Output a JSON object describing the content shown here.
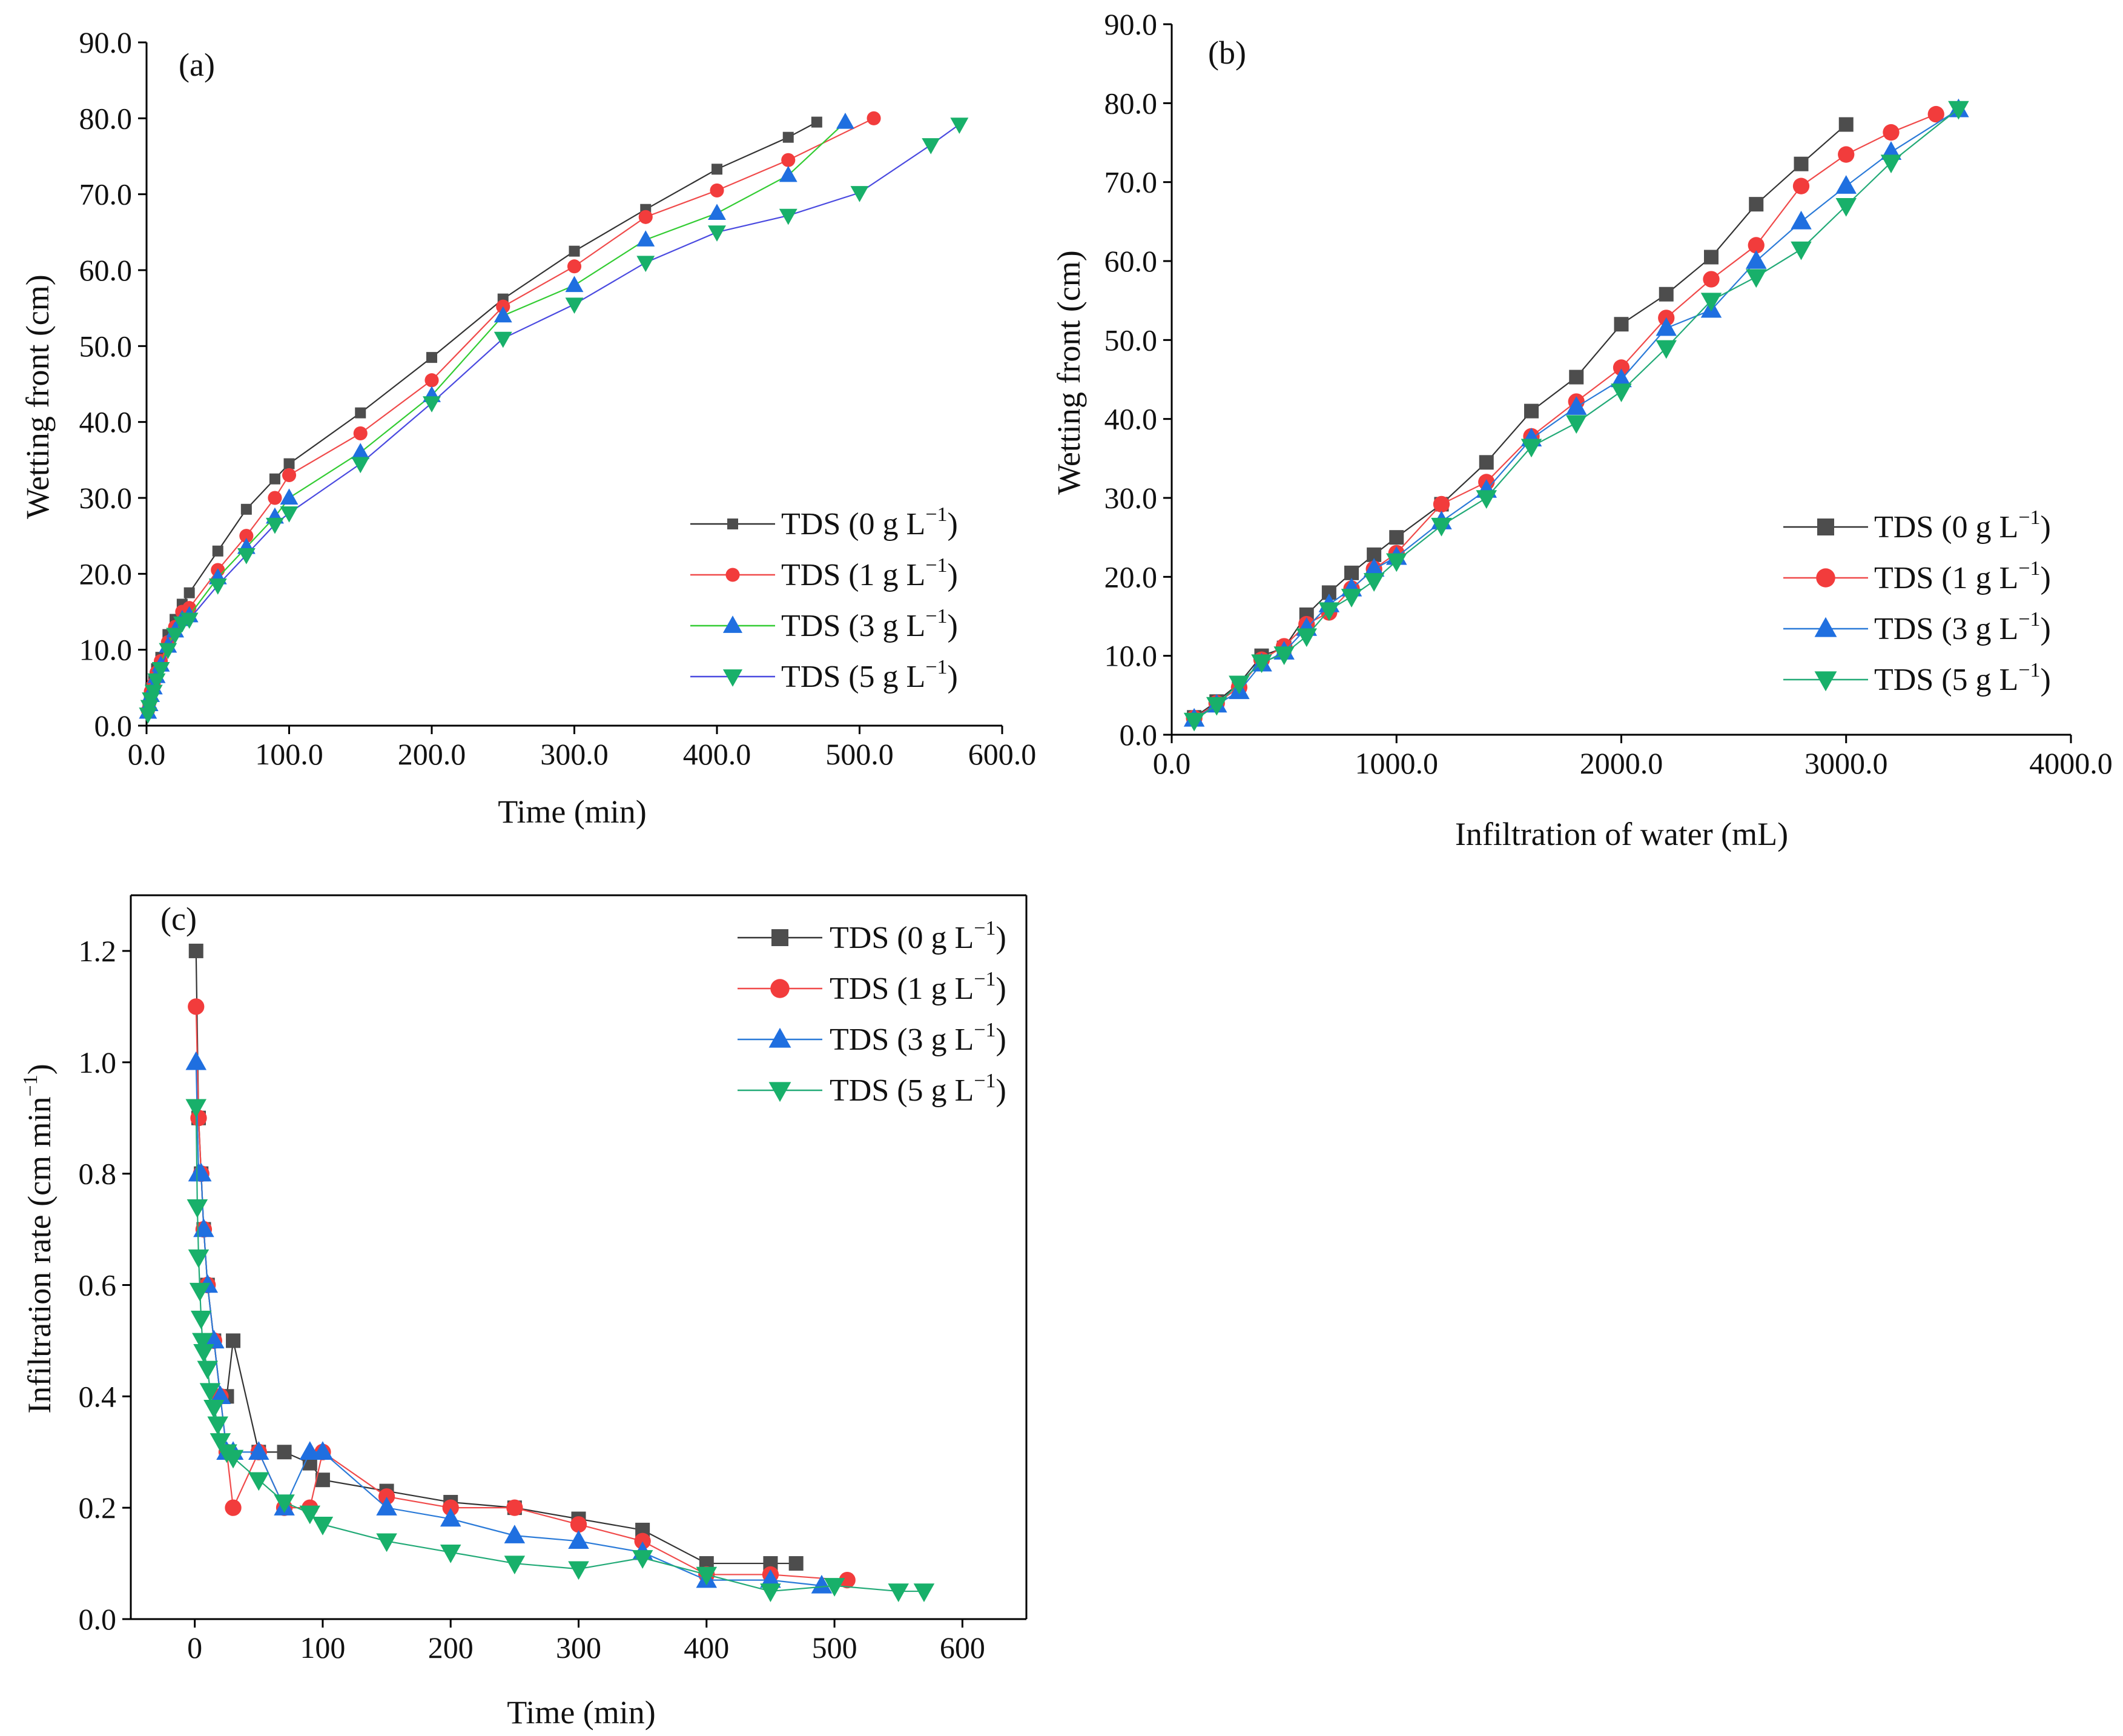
{
  "colors": {
    "tds_0": "#4d4d4d",
    "tds_1": "#f23c3c",
    "tds_3": "#1f6fe0",
    "tds_5": "#18b06a",
    "line_0": "#333333",
    "line_1": "#f04a4a",
    "line_3_a": "#33cc33",
    "line_5_a": "#4a4ae0",
    "line_3_bc": "#2a7ad8",
    "line_5_bc": "#22aa77"
  },
  "chart_data": [
    {
      "id": "a",
      "type": "line",
      "panel_label": "(a)",
      "xlabel": "Time (min)",
      "ylabel": "Wetting front (cm)",
      "xlim": [
        0,
        600
      ],
      "ylim": [
        0,
        90
      ],
      "xticks": [
        "0.0",
        "100.0",
        "200.0",
        "300.0",
        "400.0",
        "500.0",
        "600.0"
      ],
      "yticks": [
        "0.0",
        "10.0",
        "20.0",
        "30.0",
        "40.0",
        "50.0",
        "60.0",
        "70.0",
        "80.0",
        "90.0"
      ],
      "legend_position": "center-right",
      "series": [
        {
          "name": "TDS (0 g L",
          "marker": "square",
          "x": [
            1,
            2,
            3,
            5,
            7,
            10,
            15,
            20,
            25,
            30,
            50,
            70,
            90,
            100,
            150,
            200,
            250,
            300,
            350,
            400,
            450,
            470
          ],
          "y": [
            2.5,
            3.5,
            5,
            6,
            7.5,
            9,
            12,
            14,
            16,
            17.5,
            23,
            28.5,
            32.5,
            34.5,
            41.2,
            48.5,
            56.2,
            62.5,
            68,
            73.3,
            77.5,
            79.5
          ]
        },
        {
          "name": "TDS (1 g L",
          "marker": "circle",
          "x": [
            1,
            2,
            3,
            5,
            7,
            10,
            15,
            20,
            25,
            30,
            50,
            70,
            90,
            100,
            150,
            200,
            250,
            300,
            350,
            400,
            450,
            510
          ],
          "y": [
            2,
            3,
            4.5,
            5.5,
            7,
            8.5,
            11,
            13,
            15,
            15.5,
            20.5,
            25,
            30,
            33,
            38.5,
            45.5,
            55.2,
            60.5,
            67,
            70.5,
            74.5,
            80
          ]
        },
        {
          "name": "TDS (3 g L",
          "marker": "triangle-up",
          "x": [
            1,
            2,
            3,
            5,
            7,
            10,
            15,
            20,
            25,
            30,
            50,
            70,
            90,
            100,
            150,
            200,
            250,
            300,
            350,
            400,
            450,
            490
          ],
          "y": [
            1.8,
            2.8,
            4,
            5,
            6.5,
            8,
            10.5,
            12.5,
            14,
            14.5,
            19.5,
            23.5,
            27.5,
            30,
            36,
            43.5,
            54,
            58,
            64,
            67.5,
            72.5,
            79.5
          ]
        },
        {
          "name": "TDS (5 g L",
          "marker": "triangle-down",
          "x": [
            1,
            2,
            3,
            5,
            7,
            10,
            15,
            20,
            25,
            30,
            50,
            70,
            90,
            100,
            150,
            200,
            250,
            300,
            350,
            400,
            450,
            500,
            550,
            570
          ],
          "y": [
            1.5,
            2.5,
            3.5,
            4.5,
            6,
            7.5,
            10,
            12,
            13.5,
            14,
            18.5,
            22.5,
            26.5,
            28,
            34.5,
            42.5,
            51,
            55.5,
            61,
            65,
            67.2,
            70.2,
            76.5,
            79.2
          ]
        }
      ]
    },
    {
      "id": "b",
      "type": "line",
      "panel_label": "(b)",
      "xlabel": "Infiltration of water (mL)",
      "ylabel": "Wetting front (cm)",
      "xlim": [
        0,
        4000
      ],
      "ylim": [
        0,
        90
      ],
      "xticks": [
        "0.0",
        "1000.0",
        "2000.0",
        "3000.0",
        "4000.0"
      ],
      "yticks": [
        "0.0",
        "10.0",
        "20.0",
        "30.0",
        "40.0",
        "50.0",
        "60.0",
        "70.0",
        "80.0",
        "90.0"
      ],
      "legend_position": "center-right",
      "series": [
        {
          "name": "TDS (0 g L",
          "marker": "square",
          "x": [
            100,
            200,
            300,
            400,
            500,
            600,
            700,
            800,
            900,
            1000,
            1200,
            1400,
            1600,
            1800,
            2000,
            2200,
            2400,
            2600,
            2800,
            3000
          ],
          "y": [
            2.2,
            4.2,
            6.5,
            10,
            11,
            15.2,
            18,
            20.5,
            22.8,
            25,
            29.2,
            34.5,
            41,
            45.3,
            52,
            55.8,
            60.5,
            67.2,
            72.3,
            77.3
          ]
        },
        {
          "name": "TDS (1 g L",
          "marker": "circle",
          "x": [
            100,
            200,
            300,
            400,
            500,
            600,
            700,
            800,
            900,
            1000,
            1200,
            1400,
            1600,
            1800,
            2000,
            2200,
            2400,
            2600,
            2800,
            3000,
            3200,
            3400
          ],
          "y": [
            2.1,
            4,
            6,
            9.5,
            11.2,
            14,
            15.5,
            18.5,
            21,
            23,
            29.2,
            32,
            37.8,
            42.2,
            46.5,
            52.8,
            57.7,
            62,
            69.5,
            73.5,
            76.3,
            78.6
          ]
        },
        {
          "name": "TDS (3 g L",
          "marker": "triangle-up",
          "x": [
            100,
            200,
            300,
            400,
            500,
            600,
            700,
            800,
            900,
            1000,
            1200,
            1400,
            1600,
            1800,
            2000,
            2200,
            2400,
            2600,
            2800,
            3000,
            3200,
            3500
          ],
          "y": [
            2,
            3.8,
            5.5,
            9,
            10.5,
            13.5,
            16.5,
            18.5,
            21,
            22.5,
            27,
            31,
            37.5,
            41.5,
            45,
            51.5,
            53.8,
            60,
            65,
            69.5,
            73.8,
            79.2
          ]
        },
        {
          "name": "TDS (5 g L",
          "marker": "triangle-down",
          "x": [
            100,
            200,
            300,
            400,
            500,
            600,
            700,
            800,
            900,
            1000,
            1200,
            1400,
            1600,
            1800,
            2000,
            2200,
            2400,
            2600,
            2800,
            3000,
            3200,
            3500
          ],
          "y": [
            1.8,
            3.8,
            6.5,
            9.2,
            10.2,
            12.5,
            15.8,
            17.5,
            19.5,
            22,
            26.5,
            30,
            36.5,
            39.5,
            43.5,
            49,
            55,
            58,
            61.5,
            67,
            72.5,
            79.3
          ]
        }
      ]
    },
    {
      "id": "c",
      "type": "line",
      "panel_label": "(c)",
      "xlabel": "Time (min)",
      "ylabel": "Infiltration rate (cm min",
      "xlim": [
        -50,
        650
      ],
      "ylim": [
        0,
        1.3
      ],
      "xticks": [
        "0",
        "100",
        "200",
        "300",
        "400",
        "500",
        "600"
      ],
      "yticks": [
        "0.0",
        "0.2",
        "0.4",
        "0.6",
        "0.8",
        "1.0",
        "1.2"
      ],
      "legend_position": "top-right",
      "series": [
        {
          "name": "TDS (0 g L",
          "marker": "square",
          "x": [
            1,
            3,
            5,
            7,
            10,
            15,
            20,
            25,
            30,
            50,
            70,
            90,
            100,
            150,
            200,
            250,
            300,
            350,
            400,
            450,
            470
          ],
          "y": [
            1.2,
            0.9,
            0.8,
            0.7,
            0.6,
            0.5,
            0.4,
            0.4,
            0.5,
            0.3,
            0.3,
            0.28,
            0.25,
            0.23,
            0.21,
            0.2,
            0.18,
            0.16,
            0.1,
            0.1,
            0.1
          ]
        },
        {
          "name": "TDS (1 g L",
          "marker": "circle",
          "x": [
            1,
            3,
            5,
            7,
            10,
            15,
            20,
            25,
            30,
            50,
            70,
            90,
            100,
            150,
            200,
            250,
            300,
            350,
            400,
            450,
            510
          ],
          "y": [
            1.1,
            0.9,
            0.8,
            0.7,
            0.6,
            0.5,
            0.4,
            0.3,
            0.2,
            0.3,
            0.2,
            0.2,
            0.3,
            0.22,
            0.2,
            0.2,
            0.17,
            0.14,
            0.08,
            0.08,
            0.07
          ]
        },
        {
          "name": "TDS (3 g L",
          "marker": "triangle-up",
          "x": [
            1,
            3,
            5,
            7,
            10,
            15,
            20,
            25,
            30,
            50,
            70,
            90,
            100,
            150,
            200,
            250,
            300,
            350,
            400,
            450,
            490
          ],
          "y": [
            1.0,
            0.8,
            0.8,
            0.7,
            0.6,
            0.5,
            0.4,
            0.3,
            0.3,
            0.3,
            0.2,
            0.3,
            0.3,
            0.2,
            0.18,
            0.15,
            0.14,
            0.12,
            0.07,
            0.07,
            0.06
          ]
        },
        {
          "name": "TDS (5 g L",
          "marker": "triangle-down",
          "x": [
            1,
            2,
            3,
            4,
            5,
            6,
            7,
            10,
            12,
            15,
            18,
            20,
            25,
            30,
            50,
            70,
            90,
            100,
            150,
            200,
            250,
            300,
            350,
            400,
            450,
            500,
            550,
            570
          ],
          "y": [
            0.92,
            0.74,
            0.65,
            0.59,
            0.54,
            0.5,
            0.48,
            0.45,
            0.41,
            0.38,
            0.35,
            0.32,
            0.3,
            0.29,
            0.25,
            0.21,
            0.19,
            0.17,
            0.14,
            0.12,
            0.1,
            0.09,
            0.11,
            0.08,
            0.05,
            0.06,
            0.05,
            0.05
          ]
        }
      ]
    }
  ]
}
